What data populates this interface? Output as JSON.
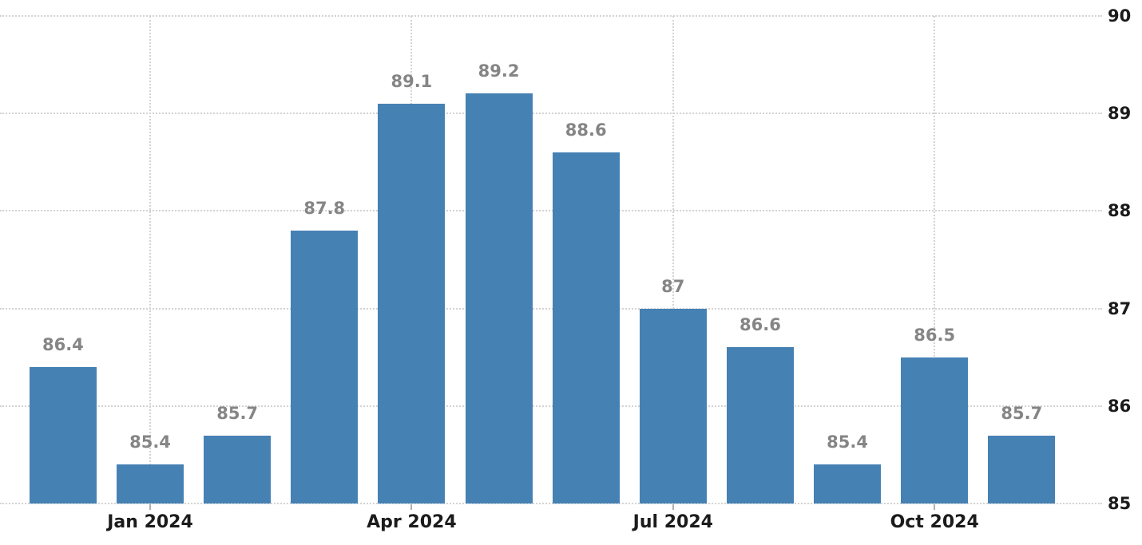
{
  "chart_data": {
    "type": "bar",
    "title": "",
    "values": [
      86.4,
      85.4,
      85.7,
      87.8,
      89.1,
      89.2,
      88.6,
      87,
      86.6,
      85.4,
      86.5,
      85.7
    ],
    "bar_labels": [
      "86.4",
      "85.4",
      "85.7",
      "87.8",
      "89.1",
      "89.2",
      "88.6",
      "87",
      "86.6",
      "85.4",
      "86.5",
      "85.7"
    ],
    "x_ticks": [
      {
        "label": "Jan 2024",
        "bar_index": 1
      },
      {
        "label": "Apr 2024",
        "bar_index": 4
      },
      {
        "label": "Jul 2024",
        "bar_index": 7
      },
      {
        "label": "Oct 2024",
        "bar_index": 10
      }
    ],
    "y_ticks": [
      {
        "value": 90,
        "label": "90"
      },
      {
        "value": 89,
        "label": "89"
      },
      {
        "value": 88,
        "label": "88"
      },
      {
        "value": 87,
        "label": "87"
      },
      {
        "value": 86,
        "label": "86"
      },
      {
        "value": 85,
        "label": "85"
      }
    ],
    "ylim": [
      85,
      90
    ],
    "y_axis_side": "right",
    "grid": "dotted",
    "legend": "none",
    "colors": {
      "bar": "#4681b4",
      "gridline": "#d3d3d3",
      "value_label": "#858585",
      "axis_label": "#1b1b1b",
      "tick": "#b0b0b0",
      "background": "#ffffff"
    }
  }
}
